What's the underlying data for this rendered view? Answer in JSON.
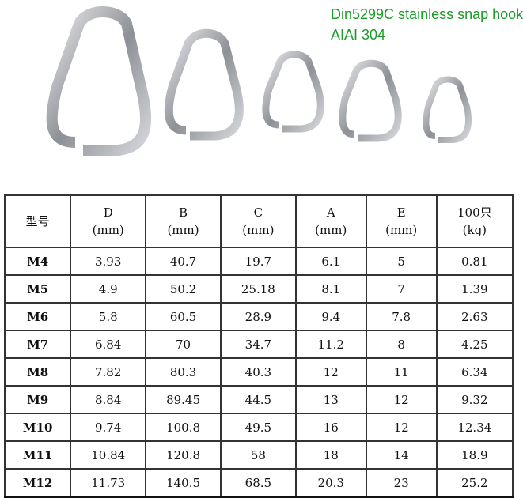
{
  "caption": {
    "line1": "Din5299C stainless snap hook",
    "line2": "AIAI 304"
  },
  "table": {
    "headers": [
      {
        "name": "型号",
        "unit": ""
      },
      {
        "name": "D",
        "unit": "(mm)"
      },
      {
        "name": "B",
        "unit": "(mm)"
      },
      {
        "name": "C",
        "unit": "(mm)"
      },
      {
        "name": "A",
        "unit": "(mm)"
      },
      {
        "name": "E",
        "unit": "(mm)"
      },
      {
        "name": "100只",
        "unit": "(kg)"
      }
    ],
    "rows": [
      [
        "M4",
        "3.93",
        "40.7",
        "19.7",
        "6.1",
        "5",
        "0.81"
      ],
      [
        "M5",
        "4.9",
        "50.2",
        "25.18",
        "8.1",
        "7",
        "1.39"
      ],
      [
        "M6",
        "5.8",
        "60.5",
        "28.9",
        "9.4",
        "7.8",
        "2.63"
      ],
      [
        "M7",
        "6.84",
        "70",
        "34.7",
        "11.2",
        "8",
        "4.25"
      ],
      [
        "M8",
        "7.82",
        "80.3",
        "40.3",
        "12",
        "11",
        "6.34"
      ],
      [
        "M9",
        "8.84",
        "89.45",
        "44.5",
        "13",
        "12",
        "9.32"
      ],
      [
        "M10",
        "9.74",
        "100.8",
        "49.5",
        "16",
        "12",
        "12.34"
      ],
      [
        "M11",
        "10.84",
        "120.8",
        "58",
        "18",
        "14",
        "18.9"
      ],
      [
        "M12",
        "11.73",
        "140.5",
        "68.5",
        "20.3",
        "23",
        "25.2"
      ]
    ]
  },
  "colors": {
    "caption": "#1e9a2a",
    "metal": "#9a9da2"
  }
}
